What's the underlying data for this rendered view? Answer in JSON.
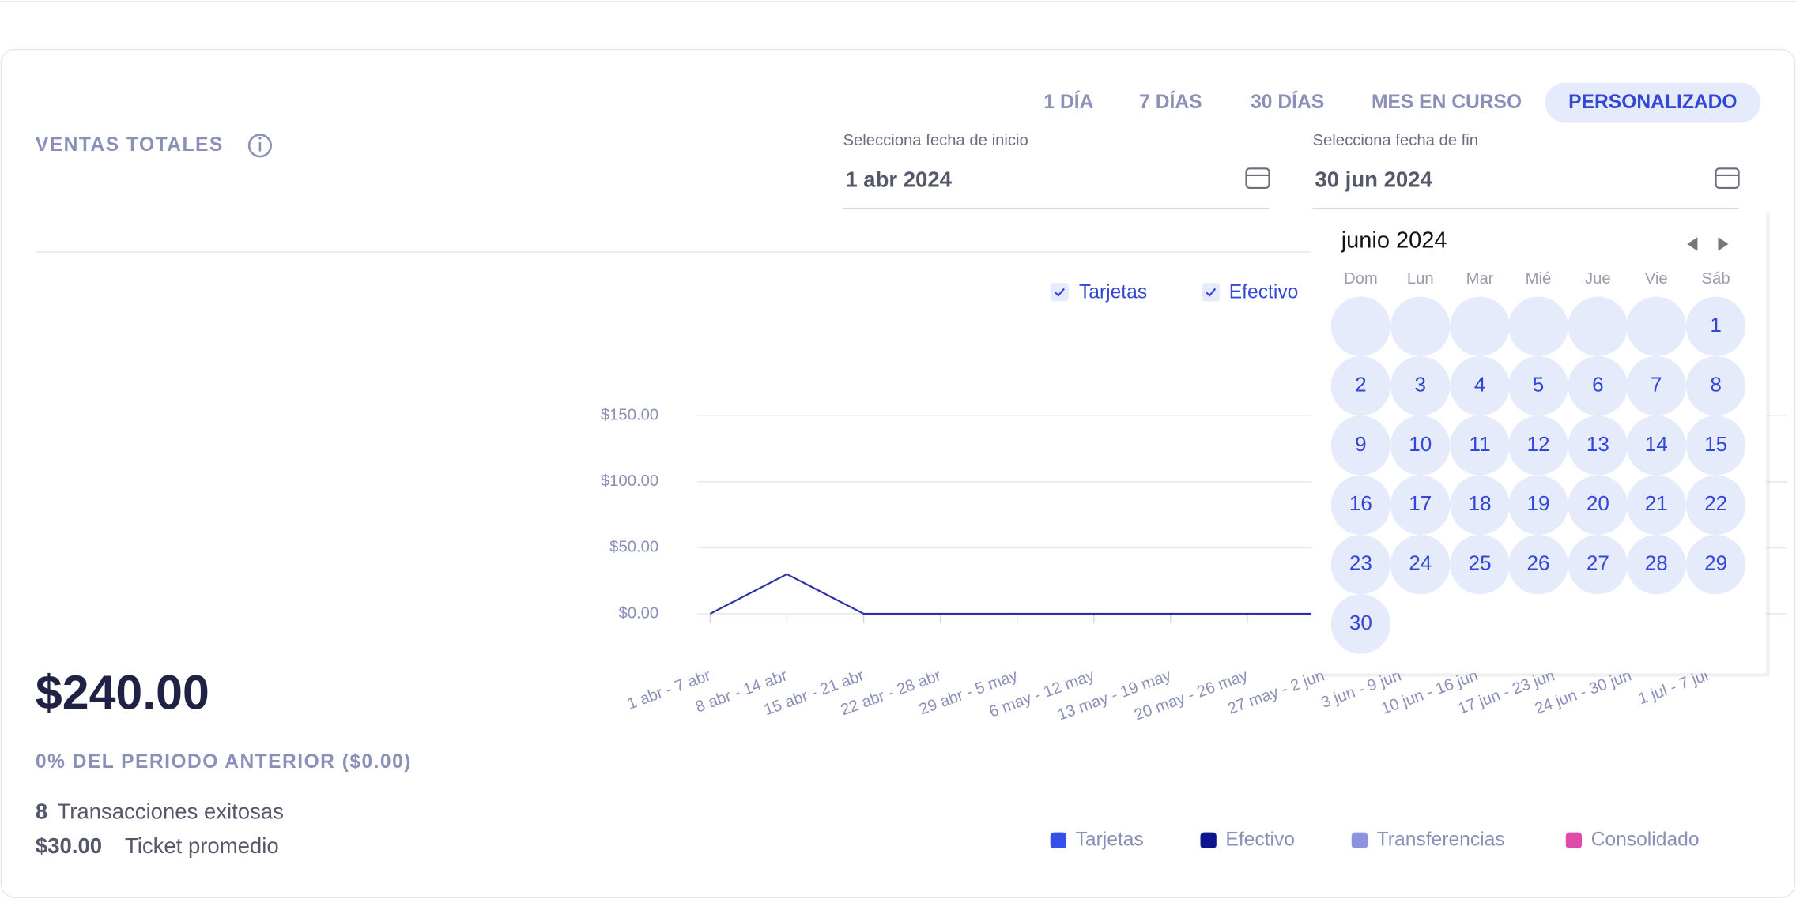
{
  "header": {
    "title": "VENTAS TOTALES"
  },
  "tabs": [
    "1 DÍA",
    "7 DÍAS",
    "30 DÍAS",
    "MES EN CURSO",
    "PERSONALIZADO"
  ],
  "date_inputs": [
    {
      "label": "Selecciona fecha de inicio",
      "value": "1 abr 2024"
    },
    {
      "label": "Selecciona fecha de fin",
      "value": "30 jun 2024"
    }
  ],
  "calendar": {
    "month": "junio 2024",
    "weekdays": [
      "Dom",
      "Lun",
      "Mar",
      "Mié",
      "Jue",
      "Vie",
      "Sáb"
    ],
    "days": [
      null,
      null,
      null,
      null,
      null,
      null,
      "1",
      "2",
      "3",
      "4",
      "5",
      "6",
      "7",
      "8",
      "9",
      "10",
      "11",
      "12",
      "13",
      "14",
      "15",
      "16",
      "17",
      "18",
      "19",
      "20",
      "21",
      "22",
      "23",
      "24",
      "25",
      "26",
      "27",
      "28",
      "29",
      "30"
    ]
  },
  "summary": {
    "total": "$240.00",
    "comparison": "0% DEL PERIODO ANTERIOR ($0.00)",
    "transactions_count": "8",
    "transactions_label": "Transacciones exitosas",
    "ticket_value": "$30.00",
    "ticket_label": "Ticket promedio"
  },
  "legend": [
    {
      "name": "Tarjetas",
      "color": "#3450e8"
    },
    {
      "name": "Efectivo",
      "color": "#0d148f"
    },
    {
      "name": "Transferencias",
      "color": "#8b93e0"
    },
    {
      "name": "Consolidado",
      "color": "#e04aa8"
    }
  ],
  "chart_data": {
    "type": "line",
    "categories": [
      "1 abr - 7 abr",
      "8 abr - 14 abr",
      "15 abr - 21 abr",
      "22 abr - 28 abr",
      "29 abr - 5 may",
      "6 may - 12 may",
      "13 may - 19 may",
      "20 may - 26 may",
      "27 may - 2 jun",
      "3 jun - 9 jun",
      "10 jun - 16 jun",
      "17 jun - 23 jun",
      "24 jun - 30 jun",
      "1 jul - 7 jul"
    ],
    "series": [
      {
        "color": "#2b31a6",
        "values": [
          0,
          30,
          0,
          0,
          0,
          0,
          0,
          0,
          0,
          null,
          null,
          null,
          null,
          null
        ]
      }
    ],
    "ylim": [
      0,
      150
    ],
    "yticks": [
      {
        "value": 0,
        "label": "$0.00"
      },
      {
        "value": 50,
        "label": "$50.00"
      },
      {
        "value": 100,
        "label": "$100.00"
      },
      {
        "value": 150,
        "label": "$150.00"
      }
    ],
    "grid": true
  }
}
